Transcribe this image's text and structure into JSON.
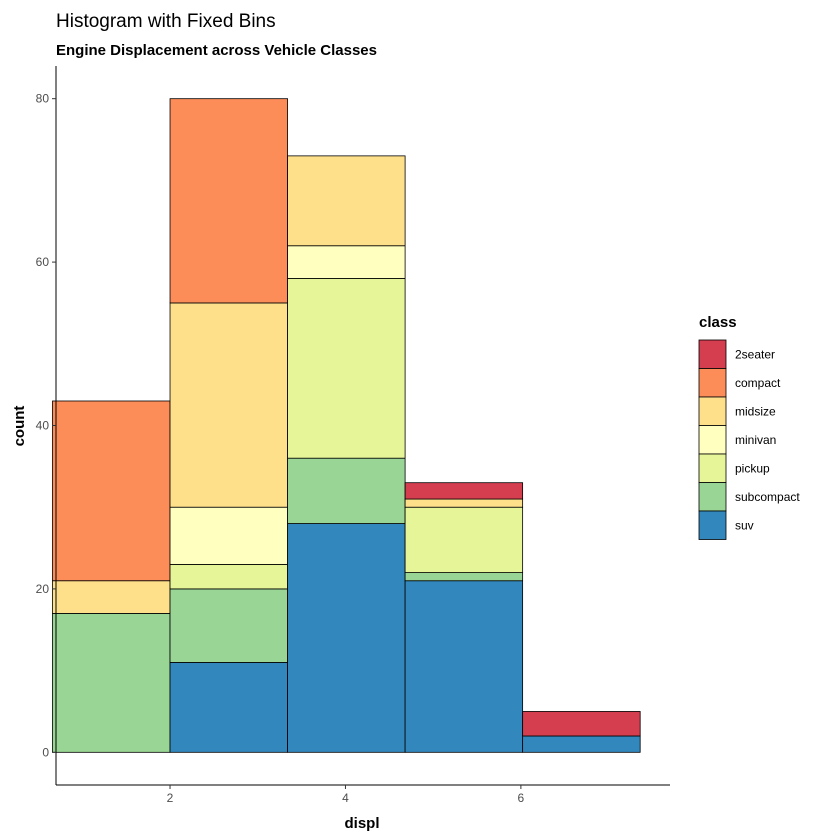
{
  "chart_data": {
    "type": "bar",
    "stacked": true,
    "title": "Histogram with Fixed Bins",
    "subtitle": "Engine Displacement across Vehicle Classes",
    "xlabel": "displ",
    "ylabel": "count",
    "xlim": [
      0.7,
      7.7
    ],
    "ylim": [
      -4,
      84
    ],
    "x_ticks": [
      2,
      4,
      6
    ],
    "y_ticks": [
      0,
      20,
      40,
      60,
      80
    ],
    "grid": false,
    "legend": {
      "title": "class",
      "position": "right"
    },
    "bins": [
      {
        "start": 0.66,
        "end": 2.0
      },
      {
        "start": 2.0,
        "end": 3.34
      },
      {
        "start": 3.34,
        "end": 4.68
      },
      {
        "start": 4.68,
        "end": 6.02
      },
      {
        "start": 6.02,
        "end": 7.36
      }
    ],
    "series": [
      {
        "name": "2seater",
        "color": "#D53E4F",
        "values": [
          0,
          0,
          0,
          2,
          3
        ]
      },
      {
        "name": "compact",
        "color": "#FC8D59",
        "values": [
          22,
          25,
          0,
          0,
          0
        ]
      },
      {
        "name": "midsize",
        "color": "#FEE08B",
        "values": [
          4,
          25,
          11,
          1,
          0
        ]
      },
      {
        "name": "minivan",
        "color": "#FFFFBF",
        "values": [
          0,
          7,
          4,
          0,
          0
        ]
      },
      {
        "name": "pickup",
        "color": "#E6F598",
        "values": [
          0,
          3,
          22,
          8,
          0
        ]
      },
      {
        "name": "subcompact",
        "color": "#99D594",
        "values": [
          17,
          9,
          8,
          1,
          0
        ]
      },
      {
        "name": "suv",
        "color": "#3288BD",
        "values": [
          0,
          11,
          28,
          21,
          2
        ]
      }
    ]
  }
}
